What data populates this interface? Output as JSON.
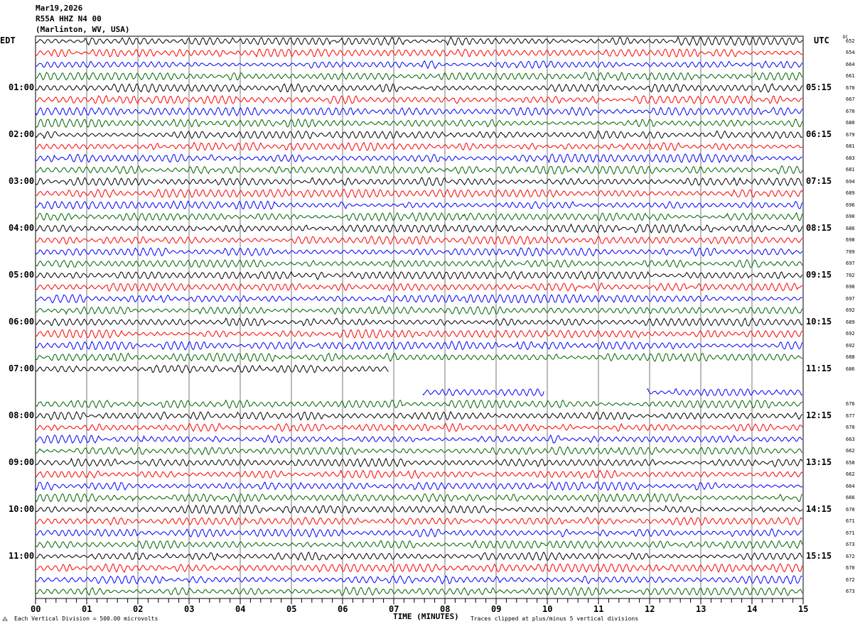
{
  "header": {
    "date": "Mar19,2026",
    "station": "R55A HHZ N4 00",
    "location": "(Marlinton, WV, USA)"
  },
  "chart_data": {
    "type": "line",
    "title": "Mar19,2026 R55A HHZ N4 00 (Marlinton, WV, USA)",
    "left_timezone": "EDT",
    "right_timezone": "UTC",
    "dc_label": "DC",
    "xlabel": "TIME (MINUTES)",
    "xlim": [
      0,
      15
    ],
    "x_ticks": [
      "00",
      "01",
      "02",
      "03",
      "04",
      "05",
      "06",
      "07",
      "08",
      "09",
      "10",
      "11",
      "12",
      "13",
      "14",
      "15"
    ],
    "left_hour_labels": [
      "01:00",
      "02:00",
      "03:00",
      "04:00",
      "05:00",
      "06:00",
      "07:00",
      "08:00",
      "09:00",
      "10:00",
      "11:00"
    ],
    "right_hour_labels": [
      "05:15",
      "06:15",
      "07:15",
      "08:15",
      "09:15",
      "10:15",
      "11:15",
      "12:15",
      "13:15",
      "14:15",
      "15:15"
    ],
    "trace_colors": [
      "#000000",
      "#ff0000",
      "#0000ff",
      "#006400"
    ],
    "dc_offsets": [
      "652",
      "654",
      "664",
      "661",
      "670",
      "667",
      "670",
      "680",
      "679",
      "681",
      "683",
      "681",
      "694",
      "689",
      "696",
      "690",
      "686",
      "698",
      "709",
      "697",
      "702",
      "698",
      "697",
      "692",
      "689",
      "692",
      "692",
      "688",
      "686",
      "",
      "",
      "676",
      "677",
      "670",
      "663",
      "662",
      "658",
      "662",
      "664",
      "666",
      "670",
      "671",
      "671",
      "673",
      "672",
      "670",
      "672",
      "673"
    ],
    "data_gaps": [
      {
        "row": 28,
        "from_min": 6.9,
        "to_min": 15
      },
      {
        "row": 29,
        "from_min": 0,
        "to_min": 15
      },
      {
        "row": 30,
        "from_min": 0,
        "to_min": 7.55
      },
      {
        "row": 30,
        "from_min": 9.95,
        "to_min": 11.95
      }
    ],
    "scale_note": "Each Vertical Division =  500.00 microvolts",
    "clip_note": "Traces clipped at plus/minus 5 vertical divisions"
  }
}
